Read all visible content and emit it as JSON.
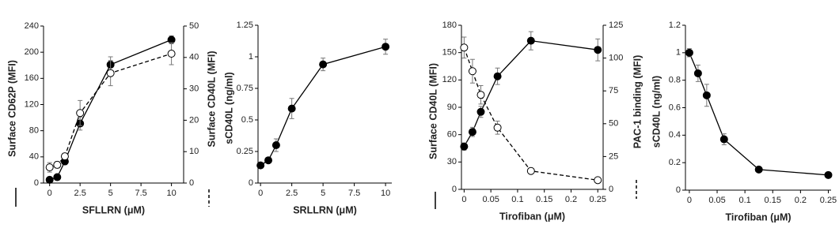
{
  "chart_data": [
    {
      "type": "line",
      "xlabel": "SFLLRN (μM)",
      "ylabel": "Surface CD62P (MFI)",
      "y2label": "Surface CD40L (MFI)",
      "x": [
        0,
        0.625,
        1.25,
        2.5,
        5,
        10
      ],
      "xlim": [
        -0.5,
        11
      ],
      "xticks": [
        0,
        2.5,
        5,
        7.5,
        10
      ],
      "ylim": [
        0,
        240
      ],
      "yticks": [
        0,
        40,
        80,
        120,
        160,
        200,
        240
      ],
      "y2lim": [
        0,
        50
      ],
      "y2ticks": [
        0,
        10,
        20,
        30,
        40,
        50
      ],
      "series": [
        {
          "marker": "filled",
          "dashed": false,
          "color": "#000000",
          "values": [
            5,
            9,
            33,
            91,
            181,
            219
          ],
          "errors": [
            3,
            3,
            5,
            10,
            12,
            6
          ]
        },
        {
          "axis": "y2",
          "marker": "open",
          "dashed": true,
          "color": "#000000",
          "values": [
            5,
            5.8,
            8.5,
            22.3,
            35,
            41.2
          ],
          "errors": [
            1.5,
            1,
            1,
            4,
            4,
            3.5
          ]
        }
      ]
    },
    {
      "type": "line",
      "xlabel": "SRLLRN (μM)",
      "ylabel": "sCD40L (ng/ml)",
      "x": [
        0,
        0.625,
        1.25,
        2.5,
        5,
        10
      ],
      "xlim": [
        -0.2,
        10.5
      ],
      "xticks": [
        0,
        2.5,
        5,
        7.5,
        10
      ],
      "ylim": [
        0,
        1.25
      ],
      "yticks": [
        0,
        0.25,
        0.5,
        0.75,
        1,
        1.25
      ],
      "series": [
        {
          "marker": "filled",
          "dashed": false,
          "color": "#000000",
          "values": [
            0.14,
            0.18,
            0.3,
            0.59,
            0.94,
            1.08
          ],
          "errors": [
            0.02,
            0.02,
            0.05,
            0.08,
            0.05,
            0.06
          ]
        }
      ]
    },
    {
      "type": "line",
      "xlabel": "Tirofiban (μM)",
      "ylabel": "Surface CD40L (MFI)",
      "y2label": "PAC-1 binding (MFI)",
      "x": [
        0,
        0.015625,
        0.03125,
        0.0625,
        0.125,
        0.25
      ],
      "xlim": [
        -0.005,
        0.26
      ],
      "xticks": [
        0,
        0.05,
        0.1,
        0.15,
        0.2,
        0.25
      ],
      "ylim": [
        0,
        180
      ],
      "yticks": [
        0,
        30,
        60,
        90,
        120,
        150,
        180
      ],
      "y2lim": [
        0,
        125
      ],
      "y2ticks": [
        0,
        25,
        50,
        75,
        100,
        125
      ],
      "series": [
        {
          "marker": "filled",
          "dashed": false,
          "color": "#000000",
          "values": [
            47,
            63,
            85,
            124,
            163,
            153
          ],
          "errors": [
            4,
            5,
            6,
            9,
            10,
            12
          ]
        },
        {
          "axis": "y2",
          "marker": "open",
          "dashed": true,
          "color": "#000000",
          "values": [
            108,
            90,
            72,
            47,
            14,
            7
          ],
          "errors": [
            8,
            9,
            7,
            5,
            2,
            2
          ]
        }
      ]
    },
    {
      "type": "line",
      "xlabel": "Tirofiban (μM)",
      "ylabel": "sCD40L (ng/ml)",
      "x": [
        0,
        0.015625,
        0.03125,
        0.0625,
        0.125,
        0.25
      ],
      "xlim": [
        -0.007,
        0.255
      ],
      "xticks": [
        0,
        0.05,
        0.1,
        0.15,
        0.2,
        0.25
      ],
      "ylim": [
        0,
        1.2
      ],
      "yticks": [
        0,
        0.2,
        0.4,
        0.6,
        0.8,
        1,
        1.2
      ],
      "series": [
        {
          "marker": "filled",
          "dashed": false,
          "color": "#000000",
          "values": [
            1,
            0.85,
            0.69,
            0.37,
            0.15,
            0.11
          ],
          "errors": [
            0.03,
            0.06,
            0.08,
            0.04,
            0.01,
            0.02
          ]
        }
      ]
    }
  ]
}
